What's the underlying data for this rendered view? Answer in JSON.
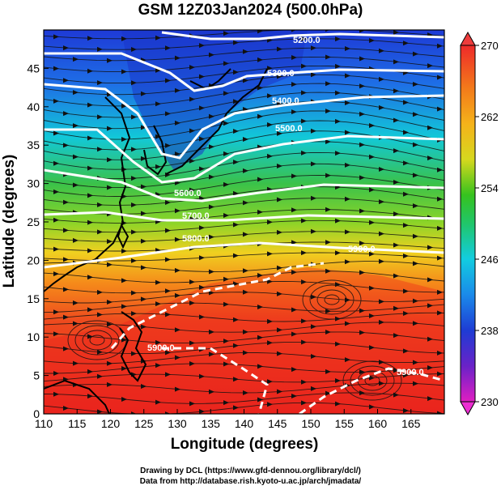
{
  "title": "GSM 12Z03Jan2024 (500.0hPa)",
  "x_axis": {
    "label": "Longitude (degrees)",
    "range": [
      110,
      170
    ],
    "ticks": [
      110,
      115,
      120,
      125,
      130,
      135,
      140,
      145,
      150,
      155,
      160,
      165
    ]
  },
  "y_axis": {
    "label": "Latitude  (degrees)",
    "range": [
      0,
      50
    ],
    "ticks": [
      0,
      5,
      10,
      15,
      20,
      25,
      30,
      35,
      40,
      45
    ]
  },
  "colorbar": {
    "range": [
      230,
      270
    ],
    "tick_labels": [
      "270",
      "262",
      "254",
      "246",
      "238",
      "230"
    ],
    "colors": [
      "#e8281e",
      "#f39a1a",
      "#36c21e",
      "#12cce0",
      "#1e3cd4",
      "#d21ec6"
    ]
  },
  "contour_labels": [
    "5200.0",
    "5300.0",
    "5400.0",
    "5500.0",
    "5600.0",
    "5700.0",
    "5800.0",
    "5900.0",
    "5900.0",
    "5900.0"
  ],
  "credits": {
    "line1": "Drawing by DCL (https://www.gfd-dennou.org/library/dcl/)",
    "line2": "Data from http://database.rish.kyoto-u.ac.jp/arch/jmadata/"
  }
}
